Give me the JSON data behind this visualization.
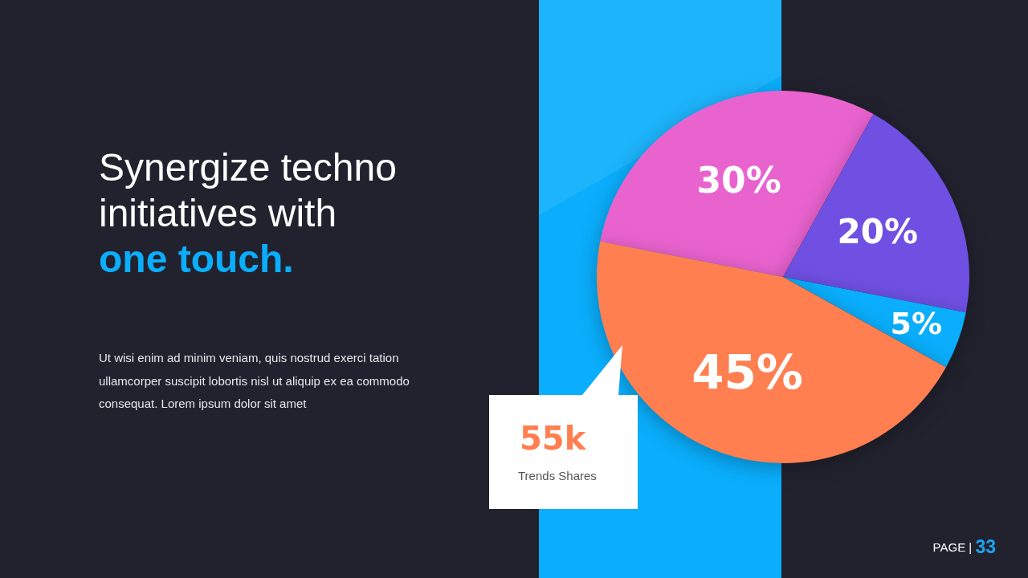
{
  "chart_data": {
    "type": "pie",
    "title": "Synergize techno initiatives with one touch.",
    "subtitle": "Ut wisi enim ad minim veniam, quis nostrud exerci tation ullamcorper suscipit lobortis nisl ut aliquip ex ea commodo consequat.  Lorem ipsum dolor sit amet",
    "categories": [
      null,
      null,
      null,
      null
    ],
    "values": [
      30,
      20,
      5,
      45
    ],
    "colors": [
      "#e963cf",
      "#7050e3",
      "#0aaefc",
      "#ff7f50"
    ],
    "value_labels": [
      "30%",
      "20%",
      "5%",
      "45%"
    ],
    "annotations": [
      "55k",
      "Trends Shares",
      "PAGE | 33"
    ]
  }
}
